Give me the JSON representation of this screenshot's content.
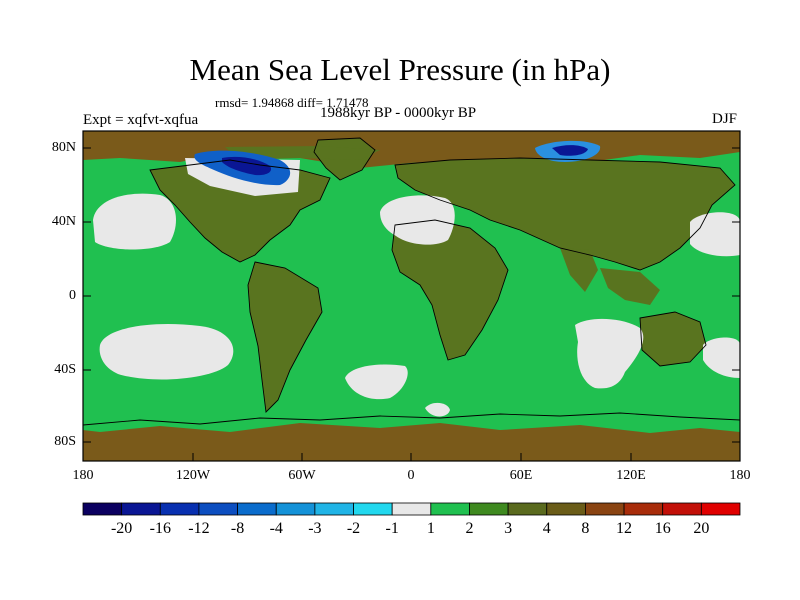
{
  "figure": {
    "title": "Mean Sea Level Pressure (in hPa)",
    "stats_text": "rmsd= 1.94868 diff= 1.71478",
    "period_text": "1988kyr BP - 0000kyr BP",
    "experiment_text": "Expt = xqfvt-xqfua",
    "season_text": "DJF"
  },
  "map": {
    "lat_labels": [
      "80N",
      "40N",
      "0",
      "40S",
      "80S"
    ],
    "lon_labels": [
      "180",
      "120W",
      "60W",
      "0",
      "60E",
      "120E",
      "180"
    ]
  },
  "colorbar": {
    "labels": [
      "-20",
      "-16",
      "-12",
      "-8",
      "-4",
      "-3",
      "-2",
      "-1",
      "1",
      "2",
      "3",
      "4",
      "8",
      "12",
      "16",
      "20"
    ],
    "colors": [
      "#0b0060",
      "#0a1694",
      "#0830b0",
      "#0c4ec0",
      "#0a6ccc",
      "#1492d8",
      "#20b4e6",
      "#22d8ee",
      "#e8e8e8",
      "#20c050",
      "#3f8a20",
      "#5a6a1e",
      "#6a5c18",
      "#8a4412",
      "#a82c0a",
      "#c21008",
      "#e00000"
    ]
  },
  "colors": {
    "ocean_fill": "#20c050",
    "land_fill": "#59741f",
    "neutral_fill": "#e8e8e8",
    "polar_fill": "#7a5a1a"
  }
}
